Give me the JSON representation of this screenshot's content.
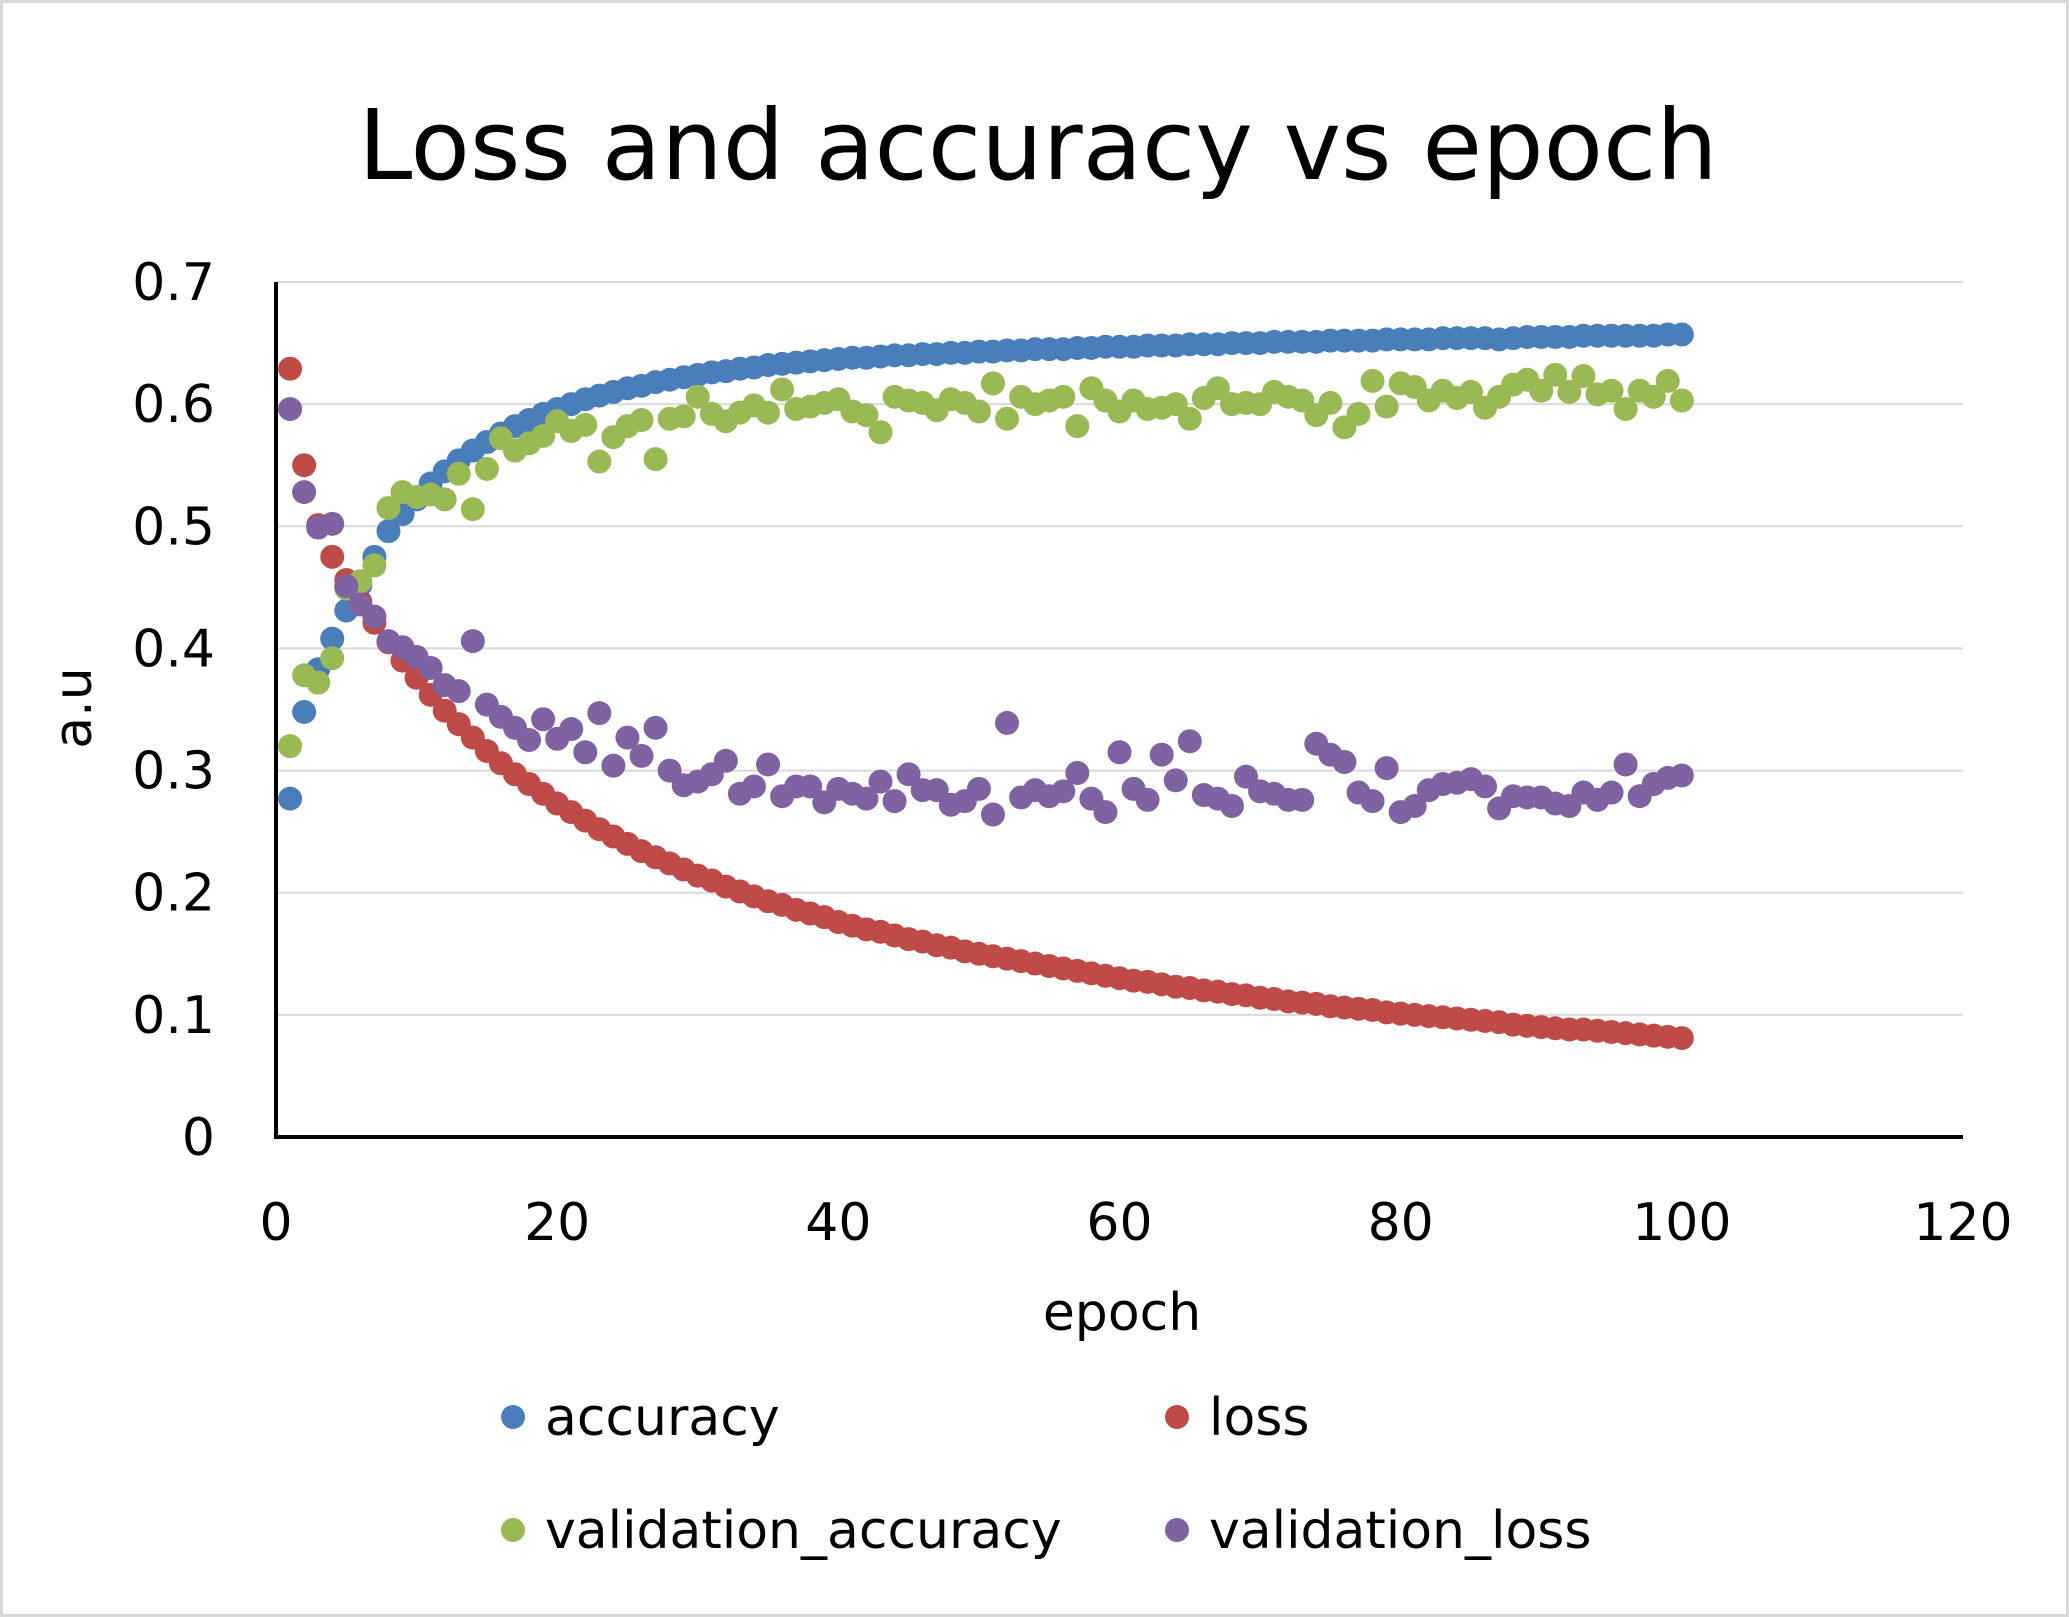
{
  "chart_data": {
    "type": "scatter",
    "title": "Loss and accuracy vs epoch",
    "xlabel": "epoch",
    "ylabel": "a.u",
    "xlim": [
      0,
      120
    ],
    "ylim": [
      0,
      0.7
    ],
    "x_ticks": [
      0,
      20,
      40,
      60,
      80,
      100,
      120
    ],
    "y_ticks": [
      0,
      0.1,
      0.2,
      0.3,
      0.4,
      0.5,
      0.6,
      0.7
    ],
    "x_tick_labels": [
      "0",
      "20",
      "40",
      "60",
      "80",
      "100",
      "120"
    ],
    "y_tick_labels": [
      "0",
      "0.1",
      "0.2",
      "0.3",
      "0.4",
      "0.5",
      "0.6",
      "0.7"
    ],
    "grid": "horizontal",
    "legend_position": "bottom",
    "series": [
      {
        "name": "accuracy",
        "color": "#4a7ebb",
        "x": [
          1,
          2,
          3,
          4,
          5,
          6,
          7,
          8,
          9,
          10,
          11,
          12,
          13,
          14,
          15,
          16,
          17,
          18,
          19,
          20,
          21,
          22,
          23,
          24,
          25,
          26,
          27,
          28,
          29,
          30,
          31,
          32,
          33,
          34,
          35,
          36,
          37,
          38,
          39,
          40,
          41,
          42,
          43,
          44,
          45,
          46,
          47,
          48,
          49,
          50,
          51,
          52,
          53,
          54,
          55,
          56,
          57,
          58,
          59,
          60,
          61,
          62,
          63,
          64,
          65,
          66,
          67,
          68,
          69,
          70,
          71,
          72,
          73,
          74,
          75,
          76,
          77,
          78,
          79,
          80,
          81,
          82,
          83,
          84,
          85,
          86,
          87,
          88,
          89,
          90,
          91,
          92,
          93,
          94,
          95,
          96,
          97,
          98,
          99,
          100
        ],
        "y": [
          0.277,
          0.348,
          0.383,
          0.408,
          0.431,
          0.452,
          0.475,
          0.496,
          0.51,
          0.522,
          0.535,
          0.545,
          0.554,
          0.562,
          0.569,
          0.576,
          0.582,
          0.587,
          0.592,
          0.596,
          0.6,
          0.604,
          0.607,
          0.61,
          0.613,
          0.615,
          0.618,
          0.62,
          0.622,
          0.624,
          0.626,
          0.627,
          0.629,
          0.63,
          0.632,
          0.633,
          0.634,
          0.635,
          0.636,
          0.637,
          0.638,
          0.638,
          0.639,
          0.64,
          0.64,
          0.641,
          0.641,
          0.642,
          0.642,
          0.643,
          0.643,
          0.644,
          0.644,
          0.645,
          0.645,
          0.645,
          0.646,
          0.646,
          0.647,
          0.647,
          0.647,
          0.648,
          0.648,
          0.648,
          0.649,
          0.649,
          0.649,
          0.65,
          0.65,
          0.65,
          0.651,
          0.651,
          0.651,
          0.651,
          0.652,
          0.652,
          0.652,
          0.652,
          0.653,
          0.653,
          0.653,
          0.653,
          0.654,
          0.654,
          0.654,
          0.654,
          0.653,
          0.654,
          0.655,
          0.655,
          0.655,
          0.655,
          0.656,
          0.656,
          0.656,
          0.656,
          0.656,
          0.656,
          0.657,
          0.657
        ]
      },
      {
        "name": "loss",
        "color": "#be4b48",
        "x": [
          1,
          2,
          3,
          4,
          5,
          6,
          7,
          8,
          9,
          10,
          11,
          12,
          13,
          14,
          15,
          16,
          17,
          18,
          19,
          20,
          21,
          22,
          23,
          24,
          25,
          26,
          27,
          28,
          29,
          30,
          31,
          32,
          33,
          34,
          35,
          36,
          37,
          38,
          39,
          40,
          41,
          42,
          43,
          44,
          45,
          46,
          47,
          48,
          49,
          50,
          51,
          52,
          53,
          54,
          55,
          56,
          57,
          58,
          59,
          60,
          61,
          62,
          63,
          64,
          65,
          66,
          67,
          68,
          69,
          70,
          71,
          72,
          73,
          74,
          75,
          76,
          77,
          78,
          79,
          80,
          81,
          82,
          83,
          84,
          85,
          86,
          87,
          88,
          89,
          90,
          91,
          92,
          93,
          94,
          95,
          96,
          97,
          98,
          99,
          100
        ],
        "y": [
          0.629,
          0.55,
          0.501,
          0.475,
          0.456,
          0.438,
          0.421,
          0.405,
          0.39,
          0.376,
          0.362,
          0.349,
          0.338,
          0.327,
          0.316,
          0.306,
          0.297,
          0.289,
          0.281,
          0.273,
          0.266,
          0.259,
          0.252,
          0.246,
          0.24,
          0.234,
          0.229,
          0.224,
          0.219,
          0.214,
          0.21,
          0.205,
          0.201,
          0.197,
          0.193,
          0.19,
          0.186,
          0.183,
          0.18,
          0.176,
          0.173,
          0.17,
          0.168,
          0.165,
          0.162,
          0.16,
          0.157,
          0.155,
          0.152,
          0.15,
          0.148,
          0.146,
          0.144,
          0.142,
          0.14,
          0.138,
          0.136,
          0.134,
          0.132,
          0.13,
          0.128,
          0.127,
          0.125,
          0.123,
          0.122,
          0.12,
          0.119,
          0.117,
          0.116,
          0.114,
          0.113,
          0.111,
          0.11,
          0.109,
          0.107,
          0.106,
          0.105,
          0.104,
          0.102,
          0.101,
          0.1,
          0.099,
          0.098,
          0.097,
          0.096,
          0.095,
          0.094,
          0.092,
          0.091,
          0.09,
          0.089,
          0.088,
          0.088,
          0.087,
          0.086,
          0.085,
          0.084,
          0.083,
          0.082,
          0.081
        ]
      },
      {
        "name": "validation_accuracy",
        "color": "#98b954",
        "x": [
          1,
          2,
          3,
          4,
          5,
          6,
          7,
          8,
          9,
          10,
          11,
          12,
          13,
          14,
          15,
          16,
          17,
          18,
          19,
          20,
          21,
          22,
          23,
          24,
          25,
          26,
          27,
          28,
          29,
          30,
          31,
          32,
          33,
          34,
          35,
          36,
          37,
          38,
          39,
          40,
          41,
          42,
          43,
          44,
          45,
          46,
          47,
          48,
          49,
          50,
          51,
          52,
          53,
          54,
          55,
          56,
          57,
          58,
          59,
          60,
          61,
          62,
          63,
          64,
          65,
          66,
          67,
          68,
          69,
          70,
          71,
          72,
          73,
          74,
          75,
          76,
          77,
          78,
          79,
          80,
          81,
          82,
          83,
          84,
          85,
          86,
          87,
          88,
          89,
          90,
          91,
          92,
          93,
          94,
          95,
          96,
          97,
          98,
          99,
          100
        ],
        "y": [
          0.32,
          0.378,
          0.372,
          0.392,
          0.449,
          0.455,
          0.468,
          0.515,
          0.528,
          0.524,
          0.526,
          0.522,
          0.543,
          0.514,
          0.547,
          0.572,
          0.562,
          0.568,
          0.574,
          0.586,
          0.578,
          0.583,
          0.553,
          0.573,
          0.582,
          0.587,
          0.555,
          0.588,
          0.59,
          0.606,
          0.592,
          0.586,
          0.593,
          0.599,
          0.593,
          0.612,
          0.596,
          0.598,
          0.601,
          0.604,
          0.594,
          0.591,
          0.577,
          0.606,
          0.603,
          0.601,
          0.595,
          0.604,
          0.601,
          0.594,
          0.617,
          0.588,
          0.606,
          0.6,
          0.603,
          0.606,
          0.582,
          0.613,
          0.603,
          0.594,
          0.603,
          0.596,
          0.597,
          0.6,
          0.588,
          0.605,
          0.613,
          0.6,
          0.601,
          0.6,
          0.61,
          0.606,
          0.603,
          0.591,
          0.601,
          0.581,
          0.592,
          0.619,
          0.598,
          0.617,
          0.614,
          0.603,
          0.611,
          0.605,
          0.61,
          0.597,
          0.606,
          0.616,
          0.62,
          0.611,
          0.624,
          0.61,
          0.623,
          0.608,
          0.611,
          0.596,
          0.611,
          0.606,
          0.619,
          0.603
        ]
      },
      {
        "name": "validation_loss",
        "color": "#7e62a1",
        "x": [
          1,
          2,
          3,
          4,
          5,
          6,
          7,
          8,
          9,
          10,
          11,
          12,
          13,
          14,
          15,
          16,
          17,
          18,
          19,
          20,
          21,
          22,
          23,
          24,
          25,
          26,
          27,
          28,
          29,
          30,
          31,
          32,
          33,
          34,
          35,
          36,
          37,
          38,
          39,
          40,
          41,
          42,
          43,
          44,
          45,
          46,
          47,
          48,
          49,
          50,
          51,
          52,
          53,
          54,
          55,
          56,
          57,
          58,
          59,
          60,
          61,
          62,
          63,
          64,
          65,
          66,
          67,
          68,
          69,
          70,
          71,
          72,
          73,
          74,
          75,
          76,
          77,
          78,
          79,
          80,
          81,
          82,
          83,
          84,
          85,
          86,
          87,
          88,
          89,
          90,
          91,
          92,
          93,
          94,
          95,
          96,
          97,
          98,
          99,
          100
        ],
        "y": [
          0.596,
          0.528,
          0.499,
          0.502,
          0.451,
          0.436,
          0.426,
          0.406,
          0.401,
          0.393,
          0.384,
          0.37,
          0.365,
          0.406,
          0.354,
          0.344,
          0.335,
          0.325,
          0.342,
          0.326,
          0.334,
          0.315,
          0.347,
          0.304,
          0.327,
          0.312,
          0.335,
          0.3,
          0.288,
          0.291,
          0.297,
          0.308,
          0.281,
          0.287,
          0.305,
          0.279,
          0.287,
          0.287,
          0.274,
          0.285,
          0.281,
          0.277,
          0.291,
          0.275,
          0.297,
          0.284,
          0.284,
          0.272,
          0.275,
          0.285,
          0.264,
          0.339,
          0.278,
          0.284,
          0.279,
          0.283,
          0.298,
          0.277,
          0.266,
          0.315,
          0.285,
          0.276,
          0.313,
          0.292,
          0.324,
          0.28,
          0.277,
          0.271,
          0.295,
          0.283,
          0.281,
          0.276,
          0.276,
          0.322,
          0.313,
          0.307,
          0.282,
          0.275,
          0.302,
          0.266,
          0.271,
          0.284,
          0.289,
          0.29,
          0.293,
          0.287,
          0.269,
          0.279,
          0.278,
          0.278,
          0.273,
          0.271,
          0.282,
          0.276,
          0.282,
          0.305,
          0.279,
          0.289,
          0.294,
          0.296
        ]
      }
    ]
  }
}
